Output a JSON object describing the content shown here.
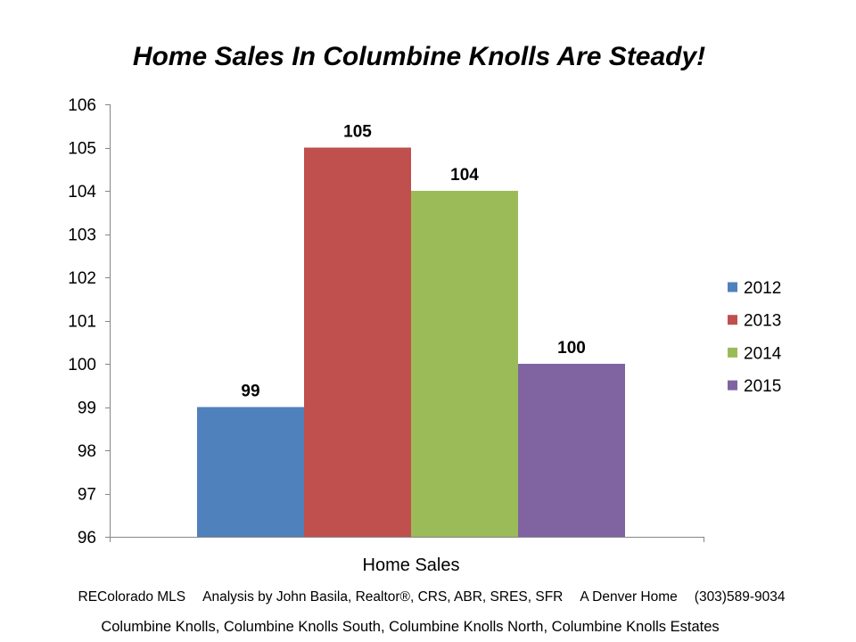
{
  "chart_data": {
    "type": "bar",
    "title": "Home Sales In Columbine Knolls Are Steady!",
    "categories": [
      "Home Sales"
    ],
    "series": [
      {
        "name": "2012",
        "values": [
          99
        ],
        "color": "#4F81BD"
      },
      {
        "name": "2013",
        "values": [
          105
        ],
        "color": "#C0504D"
      },
      {
        "name": "2014",
        "values": [
          104
        ],
        "color": "#9BBB59"
      },
      {
        "name": "2015",
        "values": [
          100
        ],
        "color": "#8064A2"
      }
    ],
    "ylim": [
      96,
      106
    ],
    "y_ticks": [
      96,
      97,
      98,
      99,
      100,
      101,
      102,
      103,
      104,
      105,
      106
    ],
    "data_labels": true,
    "grid": false,
    "legend": "right",
    "axis_color": "#868686"
  },
  "footer": {
    "source": "REColorado MLS",
    "analysis": "Analysis by John Basila, Realtor®, CRS, ABR, SRES, SFR",
    "brand": "A Denver Home",
    "phone": "(303)589-9034",
    "neighborhoods": "Columbine Knolls, Columbine Knolls South, Columbine Knolls North, Columbine Knolls Estates"
  }
}
